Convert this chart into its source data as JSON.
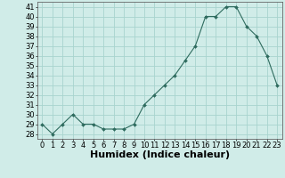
{
  "title": "",
  "xlabel": "Humidex (Indice chaleur)",
  "ylabel": "",
  "x": [
    0,
    1,
    2,
    3,
    4,
    5,
    6,
    7,
    8,
    9,
    10,
    11,
    12,
    13,
    14,
    15,
    16,
    17,
    18,
    19,
    20,
    21,
    22,
    23
  ],
  "y": [
    29,
    28,
    29,
    30,
    29,
    29,
    28.5,
    28.5,
    28.5,
    29,
    31,
    32,
    33,
    34,
    35.5,
    37,
    40,
    40,
    41,
    41,
    39,
    38,
    36,
    33
  ],
  "line_color": "#2e6b5e",
  "marker": "D",
  "marker_size": 2,
  "background_color": "#d0ece8",
  "grid_color": "#a8d4ce",
  "ylim": [
    27.5,
    41.5
  ],
  "yticks": [
    28,
    29,
    30,
    31,
    32,
    33,
    34,
    35,
    36,
    37,
    38,
    39,
    40,
    41
  ],
  "xticks": [
    0,
    1,
    2,
    3,
    4,
    5,
    6,
    7,
    8,
    9,
    10,
    11,
    12,
    13,
    14,
    15,
    16,
    17,
    18,
    19,
    20,
    21,
    22,
    23
  ],
  "tick_fontsize": 6,
  "xlabel_fontsize": 8,
  "xlabel_fontweight": "bold"
}
